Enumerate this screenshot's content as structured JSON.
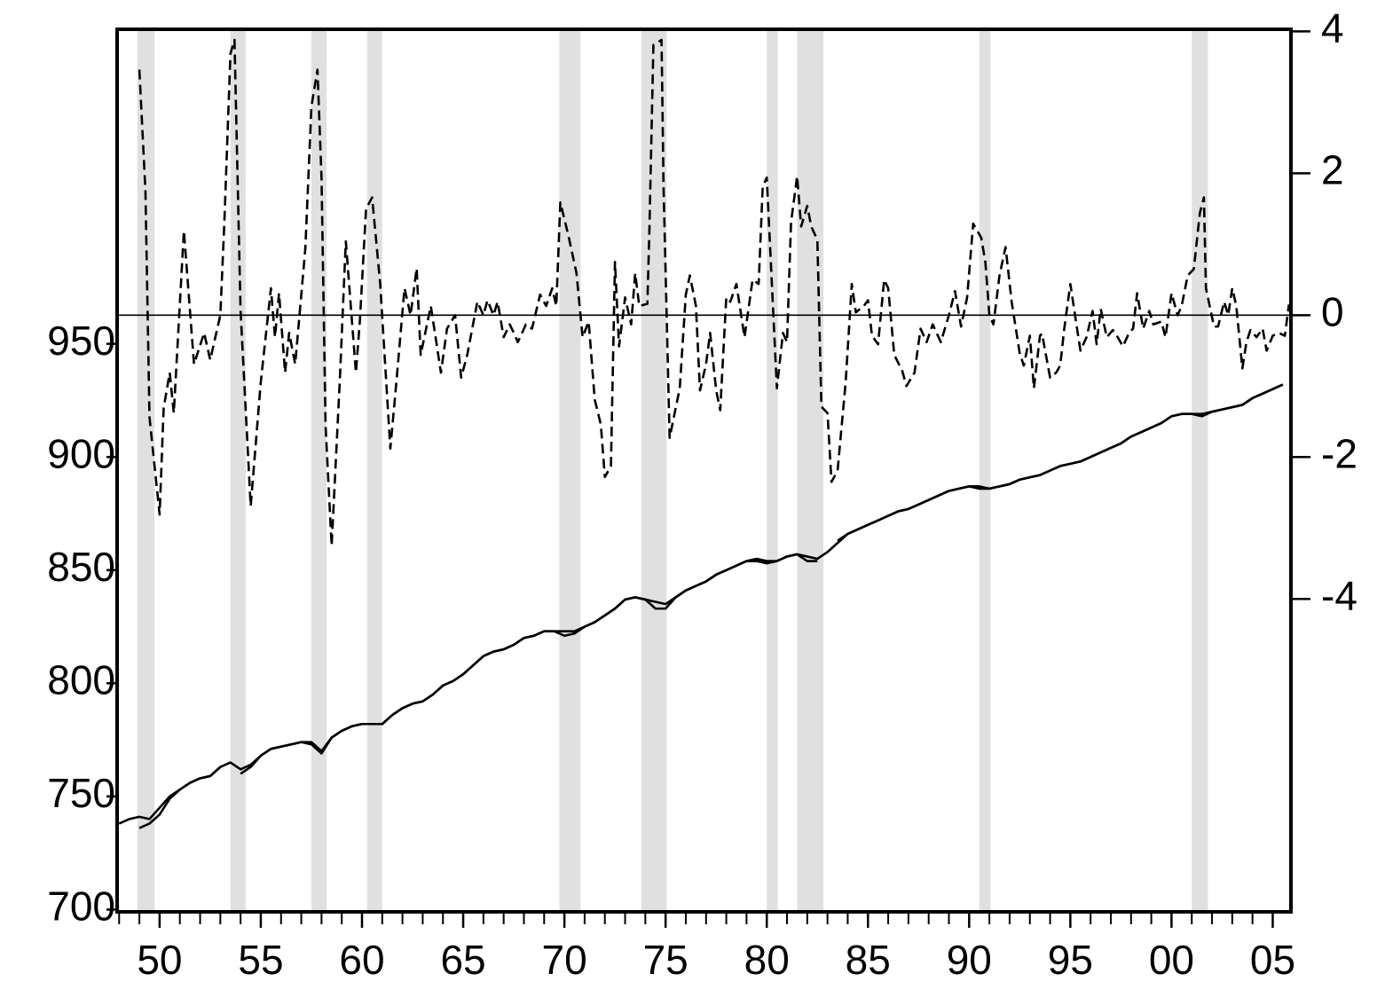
{
  "chart_data": {
    "type": "line",
    "xlim": [
      1947.9,
      2005.9
    ],
    "xticks": [
      {
        "value": 1950,
        "label": "50"
      },
      {
        "value": 1955,
        "label": "55"
      },
      {
        "value": 1960,
        "label": "60"
      },
      {
        "value": 1965,
        "label": "65"
      },
      {
        "value": 1970,
        "label": "70"
      },
      {
        "value": 1975,
        "label": "75"
      },
      {
        "value": 1980,
        "label": "80"
      },
      {
        "value": 1985,
        "label": "85"
      },
      {
        "value": 1990,
        "label": "90"
      },
      {
        "value": 1995,
        "label": "95"
      },
      {
        "value": 2000,
        "label": "00"
      },
      {
        "value": 2005,
        "label": "05"
      }
    ],
    "xminorticks": [
      1948,
      1949,
      1950,
      1951,
      1952,
      1953,
      1954,
      1955,
      1956,
      1957,
      1958,
      1959,
      1960,
      1961,
      1962,
      1963,
      1964,
      1965,
      1966,
      1967,
      1968,
      1969,
      1970,
      1971,
      1972,
      1973,
      1974,
      1975,
      1976,
      1977,
      1978,
      1979,
      1980,
      1981,
      1982,
      1983,
      1984,
      1985,
      1986,
      1987,
      1988,
      1989,
      1990,
      1991,
      1992,
      1993,
      1994,
      1995,
      1996,
      1997,
      1998,
      1999,
      2000,
      2001,
      2002,
      2003,
      2004,
      2005
    ],
    "ylim": [
      699,
      1089
    ],
    "yticks": [
      700,
      750,
      800,
      850,
      900,
      950
    ],
    "y2lim": [
      -8.41,
      4.03
    ],
    "y2ticks": [
      -4,
      -2,
      0,
      2,
      4
    ],
    "hline": {
      "value": 0,
      "axis": "y2"
    },
    "recessions": [
      [
        1948.9,
        1949.75
      ],
      [
        1953.5,
        1954.25
      ],
      [
        1957.5,
        1958.25
      ],
      [
        1960.25,
        1961.0
      ],
      [
        1969.75,
        1970.8
      ],
      [
        1973.8,
        1975.05
      ],
      [
        1980.0,
        1980.55
      ],
      [
        1981.5,
        1982.8
      ],
      [
        1990.5,
        1991.05
      ],
      [
        2001.0,
        2001.8
      ]
    ],
    "recession_color": "#e0e0e0",
    "series": [
      {
        "color": "#000000",
        "dash": false,
        "x": [
          1948.0,
          1948.5,
          1949.0,
          1949.5,
          1950.0,
          1950.5,
          1951.0,
          1951.5,
          1952.0,
          1952.5,
          1953.0,
          1953.5,
          1954.0,
          1954.5,
          1955.0,
          1955.5,
          1956.0,
          1956.5,
          1957.0,
          1957.5,
          1958.0,
          1958.5,
          1959.0,
          1959.5,
          1960.0,
          1960.5,
          1961.0,
          1961.5,
          1962.0,
          1962.5,
          1963.0,
          1963.5,
          1964.0,
          1964.5,
          1965.0,
          1965.5,
          1966.0,
          1966.5,
          1967.0,
          1967.5,
          1968.0,
          1968.5,
          1969.0,
          1969.5,
          1970.0,
          1970.5,
          1971.0,
          1971.5,
          1972.0,
          1972.5,
          1973.0,
          1973.5,
          1974.0,
          1974.5,
          1975.0,
          1975.5,
          1976.0,
          1976.5,
          1977.0,
          1977.5,
          1978.0,
          1978.5,
          1979.0,
          1979.5,
          1980.0,
          1980.5,
          1981.0,
          1981.5,
          1982.0,
          1982.5,
          1983.0,
          1983.5,
          1984.0,
          1984.5,
          1985.0,
          1985.5,
          1986.0,
          1986.5,
          1987.0,
          1987.5,
          1988.0,
          1988.5,
          1989.0,
          1989.5,
          1990.0,
          1990.5,
          1991.0,
          1991.5,
          1992.0,
          1992.5,
          1993.0,
          1993.5,
          1994.0,
          1994.5,
          1995.0,
          1995.5,
          1996.0,
          1996.5,
          1997.0,
          1997.5,
          1998.0,
          1998.5,
          1999.0,
          1999.5,
          2000.0,
          2000.5,
          2001.0,
          2001.5,
          2002.0,
          2002.5,
          2003.0,
          2003.5,
          2004.0,
          2004.5,
          2005.0,
          2005.5
        ],
        "values": [
          738,
          740,
          741,
          740,
          745,
          750,
          753,
          756,
          758,
          759,
          763,
          765,
          762,
          764,
          768,
          771,
          772,
          773,
          774,
          774,
          770,
          776,
          779,
          781,
          782,
          782,
          782,
          786,
          789,
          791,
          792,
          795,
          799,
          801,
          804,
          808,
          812,
          814,
          815,
          817,
          820,
          821,
          823,
          823,
          823,
          823,
          825,
          827,
          830,
          833,
          837,
          838,
          837,
          836,
          835,
          838,
          841,
          843,
          845,
          848,
          850,
          852,
          854,
          855,
          854,
          854,
          856,
          857,
          856,
          855,
          858,
          862,
          866,
          868,
          870,
          872,
          874,
          876,
          877,
          879,
          881,
          883,
          885,
          886,
          887,
          887,
          886,
          887,
          888,
          890,
          891,
          892,
          894,
          896,
          897,
          898,
          900,
          902,
          904,
          906,
          909,
          911,
          913,
          915,
          918,
          919,
          919,
          919,
          920,
          921,
          922,
          923,
          926,
          928,
          930,
          932
        ]
      },
      {
        "color": "#000000",
        "dash": false,
        "x": [
          1948.0,
          1948.5,
          1949.0,
          1949.5,
          1950.0,
          1950.5,
          1951.0,
          1951.5,
          1952.0,
          1952.5,
          1953.0,
          1953.5,
          1954.0,
          1954.5,
          1955.0,
          1955.5,
          1956.0,
          1956.5,
          1957.0,
          1957.5,
          1958.0,
          1958.5,
          1959.0,
          1959.5,
          1960.0,
          1960.5,
          1961.0,
          1961.5,
          1962.0,
          1962.5,
          1963.0,
          1963.5,
          1964.0,
          1964.5,
          1965.0,
          1965.5,
          1966.0,
          1966.5,
          1967.0,
          1967.5,
          1968.0,
          1968.5,
          1969.0,
          1969.5,
          1970.0,
          1970.5,
          1971.0,
          1971.5,
          1972.0,
          1972.5,
          1973.0,
          1973.5,
          1974.0,
          1974.5,
          1975.0,
          1975.5,
          1976.0,
          1976.5,
          1977.0,
          1977.5,
          1978.0,
          1978.5,
          1979.0,
          1979.5,
          1980.0,
          1980.5,
          1981.0,
          1981.5,
          1982.0,
          1982.5,
          1983.0,
          1983.5,
          1984.0,
          1984.5,
          1985.0,
          1985.5,
          1986.0,
          1986.5,
          1987.0,
          1987.5,
          1988.0,
          1988.5,
          1989.0,
          1989.5,
          1990.0,
          1990.5,
          1991.0,
          1991.5,
          1992.0,
          1992.5,
          1993.0,
          1993.5,
          1994.0,
          1994.5,
          1995.0,
          1995.5,
          1996.0,
          1996.5,
          1997.0,
          1997.5,
          1998.0,
          1998.5,
          1999.0,
          1999.5,
          2000.0,
          2000.5,
          2001.0,
          2001.5,
          2002.0,
          2002.5,
          2003.0,
          2003.5,
          2004.0,
          2004.5,
          2005.0,
          2005.5
        ],
        "values": [
          null,
          null,
          736,
          738,
          742,
          749,
          753,
          756,
          758,
          759,
          763,
          null,
          760,
          763,
          768,
          771,
          772,
          773,
          774,
          773,
          769,
          776,
          779,
          781,
          782,
          782,
          782,
          786,
          789,
          791,
          792,
          795,
          799,
          801,
          804,
          808,
          812,
          814,
          815,
          817,
          820,
          821,
          823,
          823,
          821,
          822,
          825,
          827,
          830,
          833,
          837,
          838,
          837,
          833,
          833,
          838,
          841,
          843,
          845,
          848,
          850,
          852,
          854,
          854,
          853,
          854,
          856,
          857,
          854,
          854,
          null,
          863,
          866,
          868,
          870,
          872,
          874,
          876,
          877,
          879,
          881,
          883,
          885,
          886,
          887,
          886,
          886,
          887,
          888,
          890,
          891,
          892,
          894,
          896,
          897,
          898,
          900,
          902,
          904,
          906,
          909,
          911,
          913,
          915,
          918,
          919,
          919,
          918,
          920,
          921,
          922,
          923,
          926,
          928,
          930,
          932
        ]
      },
      {
        "color": "#000000",
        "dash": true,
        "axis": "y2",
        "x": [
          1949.0,
          1949.3,
          1949.5,
          1950.0,
          1950.2,
          1950.5,
          1950.7,
          1951.2,
          1951.7,
          1952.2,
          1952.5,
          1953.0,
          1953.2,
          1953.5,
          1953.7,
          1954.0,
          1954.5,
          1955.0,
          1955.5,
          1955.7,
          1955.9,
          1956.2,
          1956.4,
          1956.7,
          1957.2,
          1957.5,
          1957.8,
          1958.0,
          1958.2,
          1958.5,
          1958.9,
          1959.2,
          1959.7,
          1959.9,
          1960.2,
          1960.5,
          1960.9,
          1961.4,
          1961.7,
          1962.1,
          1962.4,
          1962.7,
          1962.9,
          1963.4,
          1963.9,
          1964.2,
          1964.6,
          1964.9,
          1965.2,
          1965.7,
          1966.0,
          1966.2,
          1966.5,
          1966.7,
          1967.0,
          1967.3,
          1967.5,
          1967.7,
          1968.1,
          1968.4,
          1968.8,
          1969.1,
          1969.4,
          1969.6,
          1969.8,
          1970.2,
          1970.6,
          1970.9,
          1971.2,
          1971.5,
          1971.8,
          1972.0,
          1972.3,
          1972.5,
          1972.7,
          1973.0,
          1973.3,
          1973.5,
          1973.7,
          1974.1,
          1974.2,
          1974.4,
          1974.8,
          1974.9,
          1975.2,
          1975.7,
          1976.0,
          1976.2,
          1976.5,
          1976.7,
          1977.0,
          1977.2,
          1977.5,
          1977.7,
          1978.0,
          1978.2,
          1978.5,
          1978.9,
          1979.3,
          1979.6,
          1979.8,
          1980.0,
          1980.5,
          1980.8,
          1981.0,
          1981.2,
          1981.5,
          1981.7,
          1982.0,
          1982.2,
          1982.5,
          1982.7,
          1983.0,
          1983.2,
          1983.5,
          1983.9,
          1984.2,
          1984.4,
          1984.8,
          1985.0,
          1985.2,
          1985.5,
          1985.8,
          1986.0,
          1986.3,
          1986.7,
          1986.9,
          1987.3,
          1987.6,
          1987.9,
          1988.2,
          1988.6,
          1989.0,
          1989.3,
          1989.6,
          1989.9,
          1990.2,
          1990.6,
          1990.8,
          1991.0,
          1991.2,
          1991.5,
          1991.8,
          1992.1,
          1992.5,
          1992.7,
          1993.0,
          1993.2,
          1993.5,
          1993.6,
          1994.0,
          1994.3,
          1994.5,
          1994.7,
          1995.0,
          1995.3,
          1995.5,
          1995.8,
          1996.1,
          1996.3,
          1996.5,
          1996.8,
          1997.1,
          1997.3,
          1997.6,
          1997.9,
          1998.1,
          1998.3,
          1998.6,
          1998.9,
          1999.1,
          1999.5,
          1999.7,
          2000.0,
          2000.3,
          2000.5,
          2000.8,
          2001.1,
          2001.4,
          2001.6,
          2001.7,
          2002.1,
          2002.3,
          2002.6,
          2002.8,
          2003.0,
          2003.2,
          2003.5,
          2003.7,
          2003.9,
          2004.2,
          2004.5,
          2004.7,
          2005.0,
          2005.3,
          2005.6,
          2005.8
        ],
        "values": [
          3.46,
          1.75,
          -1.44,
          -2.81,
          -1.31,
          -0.81,
          -1.38,
          1.19,
          -0.69,
          -0.25,
          -0.63,
          0,
          1.31,
          3.69,
          3.88,
          0.06,
          -2.69,
          -0.94,
          0.38,
          -0.31,
          0.31,
          -0.81,
          -0.25,
          -0.69,
          0.94,
          2.94,
          3.46,
          1.94,
          -1.56,
          -3.25,
          -0.94,
          1.04,
          -0.81,
          -0.06,
          1.5,
          1.66,
          0.44,
          -1.88,
          -0.94,
          0.38,
          0,
          0.66,
          -0.56,
          0.13,
          -0.81,
          -0.19,
          0,
          -0.88,
          -0.56,
          0.19,
          0,
          0.21,
          0,
          0.19,
          -0.31,
          -0.13,
          -0.25,
          -0.38,
          -0.13,
          -0.19,
          0.29,
          0.13,
          0.38,
          0.13,
          1.59,
          1.12,
          0.59,
          -0.31,
          -0.09,
          -1.19,
          -1.54,
          -2.28,
          -2.13,
          0.75,
          -0.44,
          0.25,
          -0.13,
          0.59,
          0.13,
          0.16,
          1.19,
          3.81,
          3.88,
          1.81,
          -1.73,
          -1.03,
          0.29,
          0.56,
          0.13,
          -1.06,
          -0.69,
          -0.25,
          -1.06,
          -1.34,
          0.25,
          0.19,
          0.44,
          -0.31,
          0.5,
          0.44,
          1.81,
          1.94,
          -1.03,
          -0.25,
          -0.38,
          1.31,
          1.96,
          1.25,
          1.54,
          1.25,
          1.06,
          -1.29,
          -1.38,
          -2.35,
          -2.19,
          -0.94,
          0.44,
          0.04,
          0.13,
          0.21,
          -0.29,
          -0.41,
          0.5,
          0.38,
          -0.56,
          -0.79,
          -1.0,
          -0.81,
          -0.19,
          -0.38,
          -0.13,
          -0.38,
          0,
          0.34,
          -0.16,
          0.25,
          1.29,
          1.09,
          0.75,
          0,
          -0.13,
          0.56,
          0.96,
          0.19,
          -0.54,
          -0.71,
          -0.29,
          -1.03,
          -0.29,
          -0.26,
          -0.88,
          -0.81,
          -0.71,
          -0.19,
          0.44,
          -0.13,
          -0.5,
          -0.31,
          0.06,
          -0.41,
          0.09,
          -0.31,
          -0.21,
          -0.29,
          -0.44,
          -0.25,
          -0.19,
          0.31,
          -0.19,
          0.06,
          -0.13,
          -0.09,
          -0.31,
          0.31,
          0,
          0.13,
          0.56,
          0.65,
          1.44,
          1.66,
          0.38,
          -0.16,
          -0.16,
          0.19,
          0,
          0.38,
          0.13,
          -0.75,
          -0.38,
          -0.21,
          -0.31,
          -0.19,
          -0.5,
          -0.29,
          -0.25,
          -0.29,
          0.15
        ]
      }
    ]
  }
}
